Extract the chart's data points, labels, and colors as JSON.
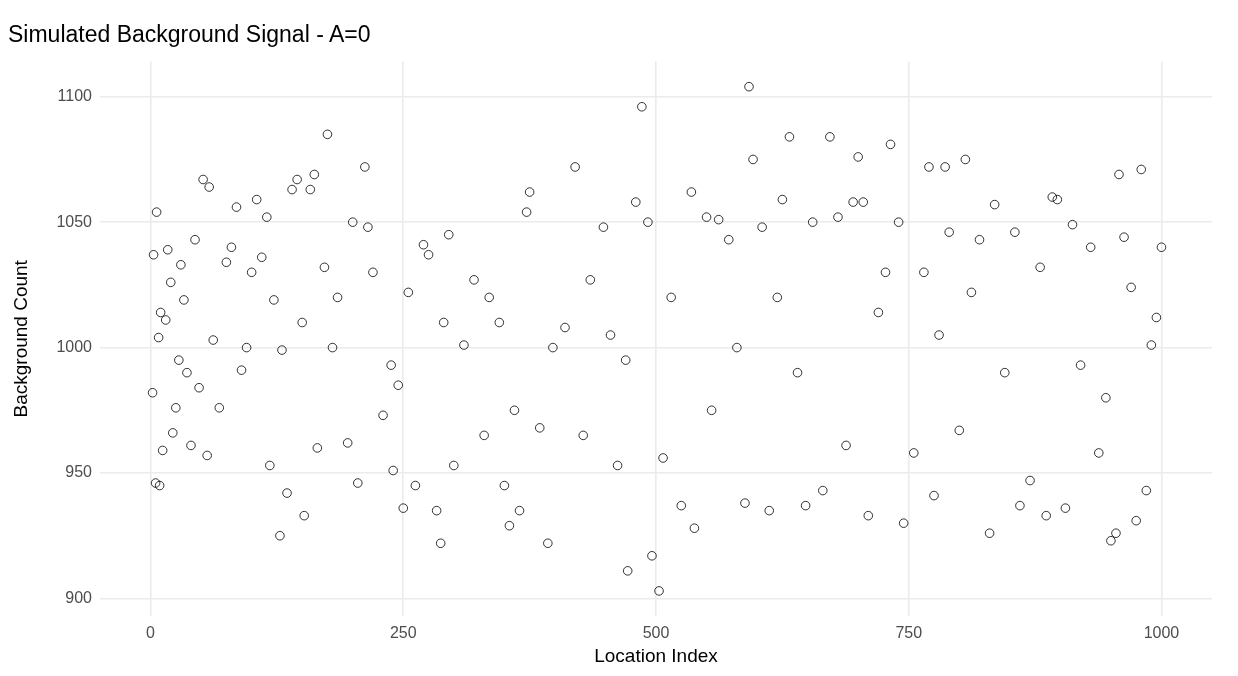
{
  "chart_data": {
    "type": "scatter",
    "title": "Simulated Background Signal - A=0",
    "xlabel": "Location Index",
    "ylabel": "Background Count",
    "xlim": [
      -50,
      1050
    ],
    "ylim": [
      893,
      1114
    ],
    "xticks": [
      0,
      250,
      500,
      750,
      1000
    ],
    "yticks": [
      900,
      950,
      1000,
      1050,
      1100
    ],
    "grid": true,
    "legend": false,
    "marker": "circle",
    "series": [
      {
        "color": "#000000",
        "x": [
          2,
          3,
          5,
          6,
          8,
          9,
          10,
          12,
          15,
          17,
          20,
          22,
          25,
          28,
          30,
          33,
          36,
          40,
          44,
          48,
          52,
          56,
          58,
          62,
          68,
          75,
          80,
          85,
          90,
          95,
          100,
          105,
          110,
          115,
          118,
          122,
          128,
          130,
          135,
          140,
          145,
          150,
          152,
          158,
          162,
          165,
          172,
          175,
          180,
          185,
          195,
          200,
          205,
          212,
          215,
          220,
          230,
          238,
          240,
          245,
          250,
          255,
          262,
          270,
          275,
          283,
          287,
          290,
          295,
          300,
          310,
          320,
          330,
          335,
          345,
          350,
          355,
          360,
          365,
          372,
          375,
          385,
          393,
          398,
          410,
          420,
          428,
          435,
          448,
          455,
          462,
          470,
          472,
          480,
          486,
          492,
          496,
          503,
          507,
          515,
          525,
          535,
          538,
          550,
          555,
          562,
          572,
          580,
          588,
          592,
          596,
          605,
          612,
          620,
          625,
          632,
          640,
          648,
          655,
          665,
          672,
          680,
          688,
          695,
          700,
          705,
          710,
          720,
          727,
          732,
          740,
          745,
          755,
          765,
          770,
          775,
          780,
          786,
          790,
          800,
          806,
          812,
          820,
          830,
          835,
          845,
          855,
          860,
          870,
          880,
          886,
          892,
          897,
          905,
          912,
          920,
          930,
          938,
          945,
          950,
          955,
          958,
          963,
          970,
          975,
          980,
          985,
          990,
          995,
          1000
        ],
        "values": [
          982,
          1037,
          946,
          1054,
          1004,
          945,
          1014,
          959,
          1011,
          1039,
          1026,
          966,
          976,
          995,
          1033,
          1019,
          990,
          961,
          1043,
          984,
          1067,
          957,
          1064,
          1003,
          976,
          1034,
          1040,
          1056,
          991,
          1000,
          1030,
          1059,
          1036,
          1052,
          953,
          1019,
          925,
          999,
          942,
          1063,
          1067,
          1010,
          933,
          1063,
          1069,
          960,
          1032,
          1085,
          1000,
          1020,
          962,
          1050,
          946,
          1072,
          1048,
          1030,
          973,
          993,
          951,
          985,
          936,
          1022,
          945,
          1041,
          1037,
          935,
          922,
          1010,
          1045,
          953,
          1001,
          1027,
          965,
          1020,
          1010,
          945,
          929,
          975,
          935,
          1054,
          1062,
          968,
          922,
          1000,
          1008,
          1072,
          965,
          1027,
          1048,
          1005,
          953,
          995,
          911,
          1058,
          1096,
          1050,
          917,
          903,
          956,
          1020,
          937,
          1062,
          928,
          1052,
          975,
          1051,
          1043,
          1000,
          938,
          1104,
          1075,
          1048,
          935,
          1020,
          1059,
          1084,
          990,
          937,
          1050,
          943,
          1084,
          1052,
          961,
          1058,
          1076,
          1058,
          933,
          1014,
          1030,
          1081,
          1050,
          930,
          958,
          1030,
          1072,
          941,
          1005,
          1072,
          1046,
          967,
          1075,
          1022,
          1043,
          926,
          1057,
          990,
          1046,
          937,
          947,
          1032,
          933,
          1060,
          1059,
          936,
          1049,
          993,
          1040,
          958,
          980,
          923,
          926,
          1069,
          1044,
          1024,
          931,
          1071,
          943,
          1001,
          1012,
          1040
        ]
      }
    ]
  }
}
